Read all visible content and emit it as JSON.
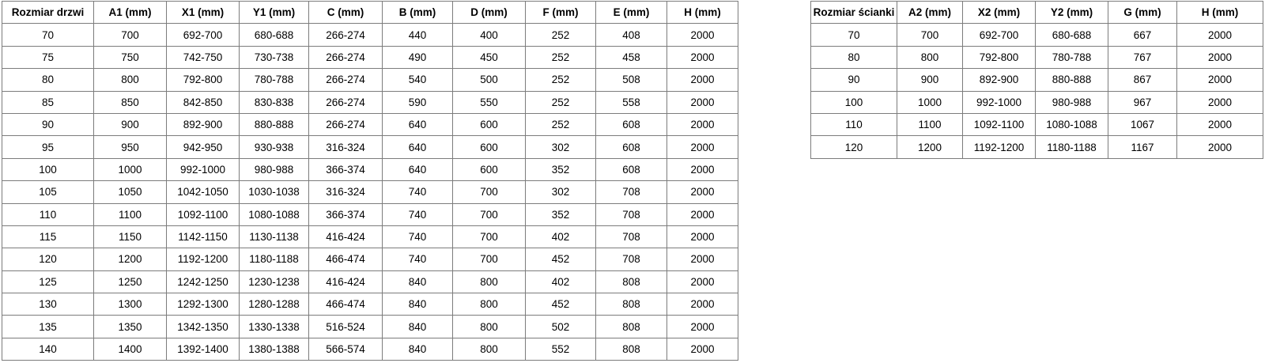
{
  "colors": {
    "background": "#ffffff",
    "table_border": "#7c7c7c",
    "text": "#000000"
  },
  "tables": {
    "door_sizes": {
      "headers": [
        "Rozmiar drzwi",
        "A1 (mm)",
        "X1 (mm)",
        "Y1 (mm)",
        "C (mm)",
        "B (mm)",
        "D (mm)",
        "F (mm)",
        "E (mm)",
        "H (mm)"
      ],
      "rows": [
        [
          "70",
          "700",
          "692-700",
          "680-688",
          "266-274",
          "440",
          "400",
          "252",
          "408",
          "2000"
        ],
        [
          "75",
          "750",
          "742-750",
          "730-738",
          "266-274",
          "490",
          "450",
          "252",
          "458",
          "2000"
        ],
        [
          "80",
          "800",
          "792-800",
          "780-788",
          "266-274",
          "540",
          "500",
          "252",
          "508",
          "2000"
        ],
        [
          "85",
          "850",
          "842-850",
          "830-838",
          "266-274",
          "590",
          "550",
          "252",
          "558",
          "2000"
        ],
        [
          "90",
          "900",
          "892-900",
          "880-888",
          "266-274",
          "640",
          "600",
          "252",
          "608",
          "2000"
        ],
        [
          "95",
          "950",
          "942-950",
          "930-938",
          "316-324",
          "640",
          "600",
          "302",
          "608",
          "2000"
        ],
        [
          "100",
          "1000",
          "992-1000",
          "980-988",
          "366-374",
          "640",
          "600",
          "352",
          "608",
          "2000"
        ],
        [
          "105",
          "1050",
          "1042-1050",
          "1030-1038",
          "316-324",
          "740",
          "700",
          "302",
          "708",
          "2000"
        ],
        [
          "110",
          "1100",
          "1092-1100",
          "1080-1088",
          "366-374",
          "740",
          "700",
          "352",
          "708",
          "2000"
        ],
        [
          "115",
          "1150",
          "1142-1150",
          "1130-1138",
          "416-424",
          "740",
          "700",
          "402",
          "708",
          "2000"
        ],
        [
          "120",
          "1200",
          "1192-1200",
          "1180-1188",
          "466-474",
          "740",
          "700",
          "452",
          "708",
          "2000"
        ],
        [
          "125",
          "1250",
          "1242-1250",
          "1230-1238",
          "416-424",
          "840",
          "800",
          "402",
          "808",
          "2000"
        ],
        [
          "130",
          "1300",
          "1292-1300",
          "1280-1288",
          "466-474",
          "840",
          "800",
          "452",
          "808",
          "2000"
        ],
        [
          "135",
          "1350",
          "1342-1350",
          "1330-1338",
          "516-524",
          "840",
          "800",
          "502",
          "808",
          "2000"
        ],
        [
          "140",
          "1400",
          "1392-1400",
          "1380-1388",
          "566-574",
          "840",
          "800",
          "552",
          "808",
          "2000"
        ]
      ]
    },
    "wall_sizes": {
      "headers": [
        "Rozmiar ścianki",
        "A2 (mm)",
        "X2 (mm)",
        "Y2 (mm)",
        "G (mm)",
        "H (mm)"
      ],
      "rows": [
        [
          "70",
          "700",
          "692-700",
          "680-688",
          "667",
          "2000"
        ],
        [
          "80",
          "800",
          "792-800",
          "780-788",
          "767",
          "2000"
        ],
        [
          "90",
          "900",
          "892-900",
          "880-888",
          "867",
          "2000"
        ],
        [
          "100",
          "1000",
          "992-1000",
          "980-988",
          "967",
          "2000"
        ],
        [
          "110",
          "1100",
          "1092-1100",
          "1080-1088",
          "1067",
          "2000"
        ],
        [
          "120",
          "1200",
          "1192-1200",
          "1180-1188",
          "1167",
          "2000"
        ]
      ]
    }
  }
}
